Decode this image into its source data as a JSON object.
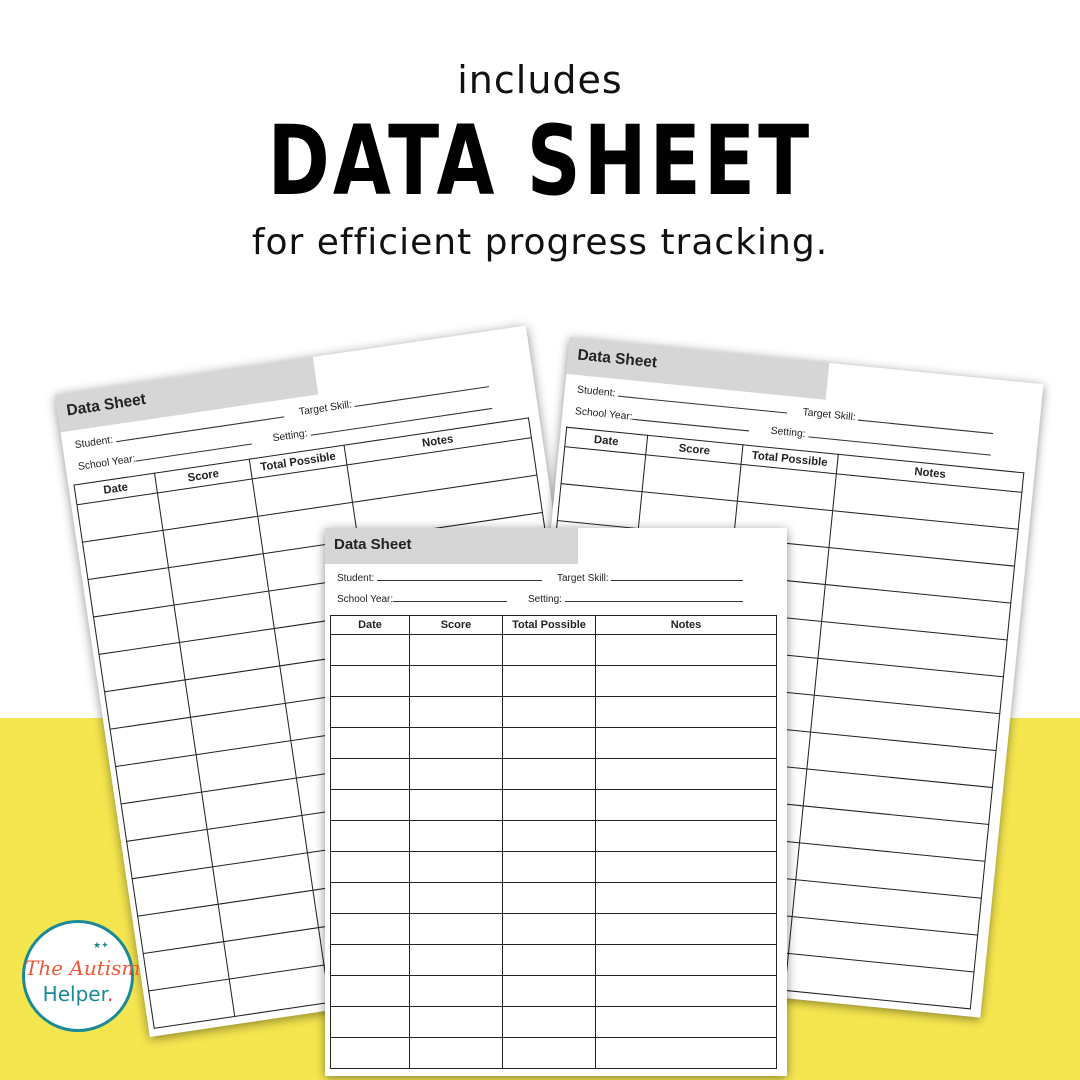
{
  "headline": {
    "small": "includes",
    "big": "DATA SHEET",
    "sub": "for efficient progress tracking."
  },
  "sheet": {
    "title": "Data Sheet",
    "student_label": "Student:",
    "target_skill_label": "Target Skill:",
    "school_year_label": "School Year:",
    "setting_label": "Setting:",
    "columns": [
      "Date",
      "Score",
      "Total Possible",
      "Notes"
    ],
    "row_count": 14
  },
  "logo": {
    "line1": "The Autism",
    "line2": "Helper",
    "dot": "."
  },
  "colors": {
    "band": "#f5e64f",
    "logo_teal": "#1b8a96",
    "logo_orange": "#ec5a3a",
    "title_bar": "#d6d6d6"
  }
}
